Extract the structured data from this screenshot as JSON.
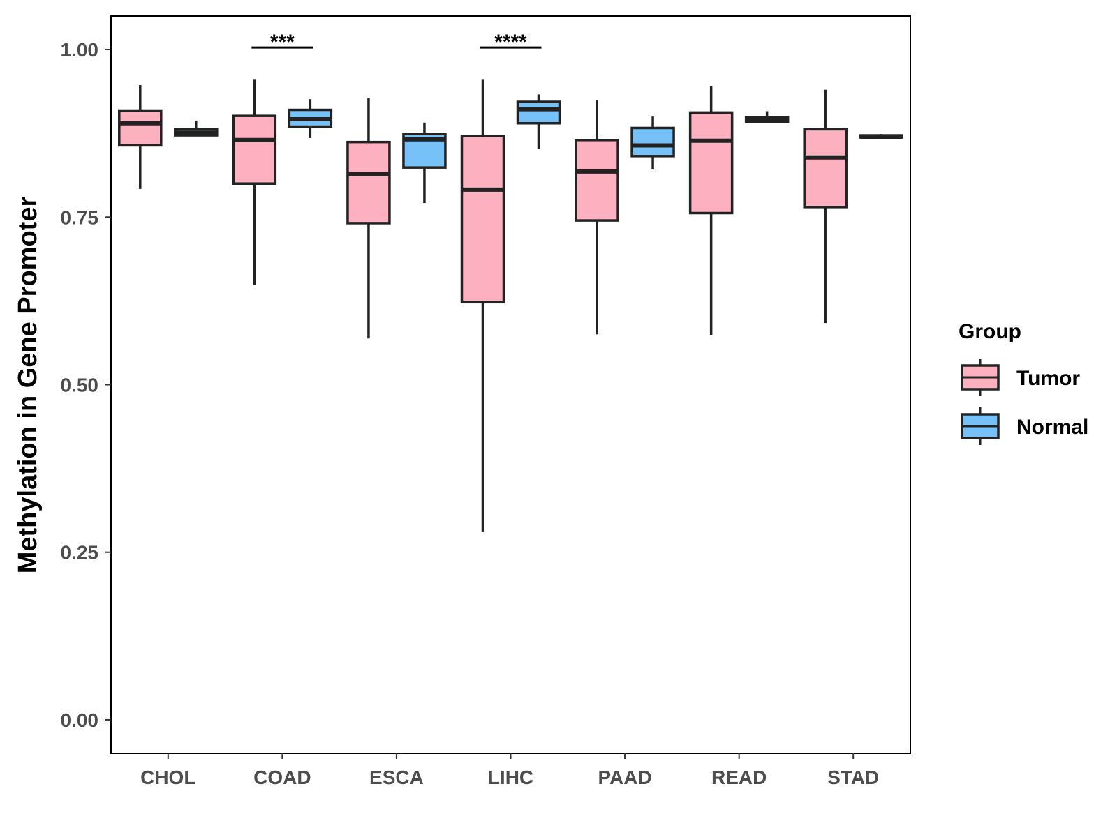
{
  "chart_data": {
    "type": "boxplot",
    "title": "",
    "xlabel": "",
    "ylabel": "Methylation in Gene Promoter",
    "ylim": [
      -0.05,
      1.05
    ],
    "yticks": [
      0.0,
      0.25,
      0.5,
      0.75,
      1.0
    ],
    "ytick_labels": [
      "0.00",
      "0.25",
      "0.50",
      "0.75",
      "1.00"
    ],
    "categories": [
      "CHOL",
      "COAD",
      "ESCA",
      "LIHC",
      "PAAD",
      "READ",
      "STAD"
    ],
    "grid": false,
    "legend": {
      "title": "Group",
      "position": "right",
      "entries": [
        {
          "name": "Tumor",
          "color": "#FDB0C0"
        },
        {
          "name": "Normal",
          "color": "#76C1F7"
        }
      ]
    },
    "series": [
      {
        "name": "Tumor",
        "color": "#FDB0C0",
        "boxes": [
          {
            "category": "CHOL",
            "min": 0.792,
            "q1": 0.857,
            "median": 0.89,
            "q3": 0.909,
            "max": 0.947
          },
          {
            "category": "COAD",
            "min": 0.649,
            "q1": 0.8,
            "median": 0.865,
            "q3": 0.901,
            "max": 0.956
          },
          {
            "category": "ESCA",
            "min": 0.569,
            "q1": 0.741,
            "median": 0.814,
            "q3": 0.862,
            "max": 0.928
          },
          {
            "category": "LIHC",
            "min": 0.28,
            "q1": 0.623,
            "median": 0.791,
            "q3": 0.871,
            "max": 0.956
          },
          {
            "category": "PAAD",
            "min": 0.575,
            "q1": 0.745,
            "median": 0.818,
            "q3": 0.865,
            "max": 0.924
          },
          {
            "category": "READ",
            "min": 0.574,
            "q1": 0.756,
            "median": 0.864,
            "q3": 0.906,
            "max": 0.945
          },
          {
            "category": "STAD",
            "min": 0.592,
            "q1": 0.765,
            "median": 0.839,
            "q3": 0.881,
            "max": 0.94
          }
        ]
      },
      {
        "name": "Normal",
        "color": "#76C1F7",
        "boxes": [
          {
            "category": "CHOL",
            "min": 0.871,
            "q1": 0.872,
            "median": 0.876,
            "q3": 0.881,
            "max": 0.894
          },
          {
            "category": "COAD",
            "min": 0.868,
            "q1": 0.885,
            "median": 0.896,
            "q3": 0.91,
            "max": 0.926
          },
          {
            "category": "ESCA",
            "min": 0.771,
            "q1": 0.824,
            "median": 0.866,
            "q3": 0.874,
            "max": 0.891
          },
          {
            "category": "LIHC",
            "min": 0.852,
            "q1": 0.89,
            "median": 0.911,
            "q3": 0.922,
            "max": 0.933
          },
          {
            "category": "PAAD",
            "min": 0.821,
            "q1": 0.841,
            "median": 0.857,
            "q3": 0.883,
            "max": 0.9
          },
          {
            "category": "READ",
            "min": 0.891,
            "q1": 0.892,
            "median": 0.895,
            "q3": 0.899,
            "max": 0.908
          },
          {
            "category": "STAD",
            "min": 0.868,
            "q1": 0.869,
            "median": 0.87,
            "q3": 0.872,
            "max": 0.874
          }
        ]
      }
    ],
    "annotations": [
      {
        "category": "COAD",
        "label": "***",
        "y": 1.003
      },
      {
        "category": "LIHC",
        "label": "****",
        "y": 1.003
      }
    ]
  }
}
